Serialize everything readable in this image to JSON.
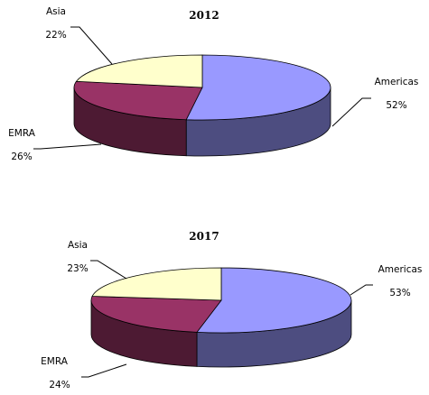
{
  "colors": {
    "Americas": "#9999ff",
    "EMRA": "#993366",
    "Asia": "#ffffcc"
  },
  "chart_data": [
    {
      "type": "pie",
      "title": "2012",
      "slices": [
        {
          "name": "Americas",
          "value": 52,
          "label": "52%"
        },
        {
          "name": "EMRA",
          "value": 26,
          "label": "26%"
        },
        {
          "name": "Asia",
          "value": 22,
          "label": "22%"
        }
      ],
      "style": "3d"
    },
    {
      "type": "pie",
      "title": "2017",
      "slices": [
        {
          "name": "Americas",
          "value": 53,
          "label": "53%"
        },
        {
          "name": "EMRA",
          "value": 24,
          "label": "24%"
        },
        {
          "name": "Asia",
          "value": 23,
          "label": "23%"
        }
      ],
      "style": "3d"
    }
  ]
}
